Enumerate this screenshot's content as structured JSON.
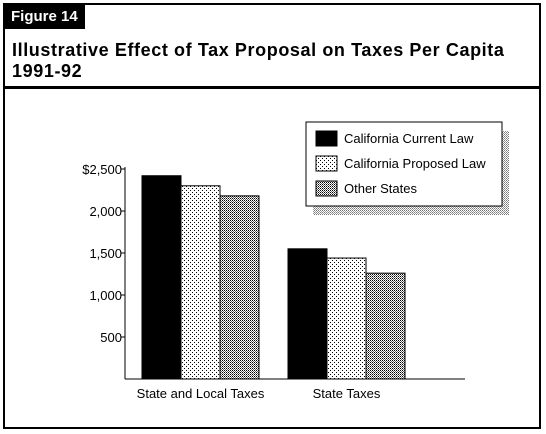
{
  "figure": {
    "label": "Figure 14",
    "title_line1": "Illustrative Effect of Tax Proposal on Taxes Per Capita",
    "title_line2": "1991-92"
  },
  "chart_data": {
    "type": "bar",
    "title": "Illustrative Effect of Tax Proposal on Taxes Per Capita 1991-92",
    "categories": [
      "State and Local Taxes",
      "State Taxes"
    ],
    "series": [
      {
        "name": "California Current Law",
        "values": [
          2420,
          1550
        ],
        "pattern": "solid"
      },
      {
        "name": "California Proposed Law",
        "values": [
          2300,
          1440
        ],
        "pattern": "light-dots"
      },
      {
        "name": "Other States",
        "values": [
          2180,
          1260
        ],
        "pattern": "dense-dots"
      }
    ],
    "ylim": [
      0,
      2500
    ],
    "yticks": [
      500,
      1000,
      1500,
      2000,
      2500
    ],
    "ytick_labels": [
      "500",
      "1,000",
      "1,500",
      "2,000",
      "$2,500"
    ],
    "xlabel": "",
    "ylabel": "",
    "grid": false,
    "legend_position": "top-right"
  }
}
